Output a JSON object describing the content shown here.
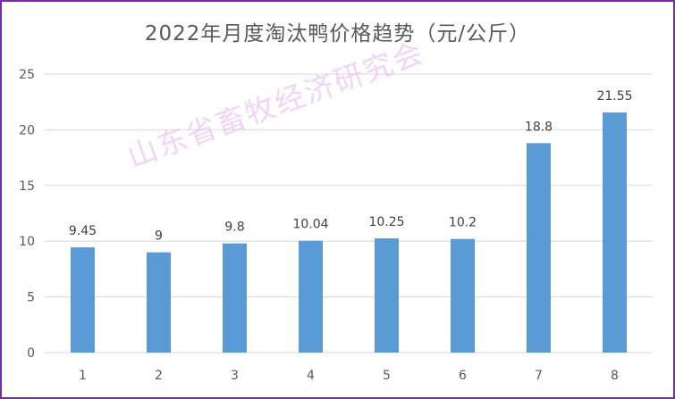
{
  "chart_data": {
    "type": "bar",
    "title": "2022年月度淘汰鸭价格趋势（元/公斤）",
    "categories": [
      "1",
      "2",
      "3",
      "4",
      "5",
      "6",
      "7",
      "8"
    ],
    "values": [
      9.45,
      9,
      9.8,
      10.04,
      10.25,
      10.2,
      18.8,
      21.55
    ],
    "value_labels": [
      "9.45",
      "9",
      "9.8",
      "10.04",
      "10.25",
      "10.2",
      "18.8",
      "21.55"
    ],
    "ylim": [
      0,
      25
    ],
    "yticks": [
      0,
      5,
      10,
      15,
      20,
      25
    ],
    "grid": true,
    "bar_color": "#5b9bd5",
    "gridline_color": "#d9d9d9"
  },
  "watermark": "山东省畜牧经济研究会",
  "frame_color": "#7030a0"
}
